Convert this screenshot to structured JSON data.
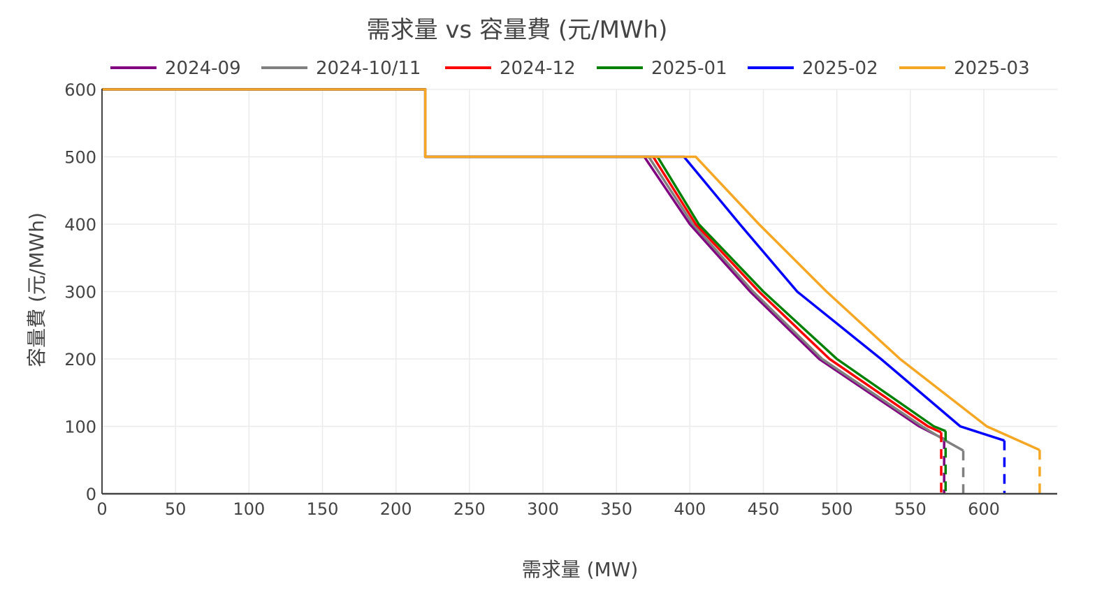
{
  "chart_data": {
    "type": "line",
    "title": "需求量 vs 容量費 (元/MWh)",
    "xlabel": "需求量 (MW)",
    "ylabel": "容量費 (元/MWh)",
    "xlim": [
      0,
      650
    ],
    "ylim": [
      0,
      600
    ],
    "xticks": [
      0,
      50,
      100,
      150,
      200,
      250,
      300,
      350,
      400,
      450,
      500,
      550,
      600
    ],
    "yticks": [
      0,
      100,
      200,
      300,
      400,
      500,
      600
    ],
    "grid": true,
    "legend": "top",
    "series": [
      {
        "name": "2024-09",
        "color": "#800080",
        "points": [
          [
            0,
            600
          ],
          [
            220,
            600
          ],
          [
            220,
            500
          ],
          [
            369,
            500
          ],
          [
            400,
            400
          ],
          [
            441,
            300
          ],
          [
            488,
            200
          ],
          [
            556,
            100
          ],
          [
            573,
            81
          ]
        ],
        "dashed_to_zero_at": 573
      },
      {
        "name": "2024-10/11",
        "color": "#808080",
        "points": [
          [
            0,
            600
          ],
          [
            220,
            600
          ],
          [
            220,
            500
          ],
          [
            372,
            500
          ],
          [
            402,
            400
          ],
          [
            443,
            300
          ],
          [
            490,
            200
          ],
          [
            558,
            100
          ],
          [
            573,
            80
          ],
          [
            586,
            64
          ]
        ],
        "dashed_to_zero_at": 586
      },
      {
        "name": "2024-12",
        "color": "#ff0000",
        "points": [
          [
            0,
            600
          ],
          [
            220,
            600
          ],
          [
            220,
            500
          ],
          [
            375,
            500
          ],
          [
            404,
            400
          ],
          [
            447,
            300
          ],
          [
            495,
            200
          ],
          [
            562,
            100
          ],
          [
            571,
            91
          ]
        ],
        "dashed_to_zero_at": 571
      },
      {
        "name": "2025-01",
        "color": "#008000",
        "points": [
          [
            0,
            600
          ],
          [
            220,
            600
          ],
          [
            220,
            500
          ],
          [
            378,
            500
          ],
          [
            406,
            400
          ],
          [
            450,
            300
          ],
          [
            500,
            200
          ],
          [
            566,
            100
          ],
          [
            574,
            93
          ]
        ],
        "dashed_to_zero_at": 574
      },
      {
        "name": "2025-02",
        "color": "#0000ff",
        "points": [
          [
            0,
            600
          ],
          [
            220,
            600
          ],
          [
            220,
            500
          ],
          [
            396,
            500
          ],
          [
            434,
            400
          ],
          [
            473,
            300
          ],
          [
            530,
            200
          ],
          [
            584,
            100
          ],
          [
            614,
            79
          ]
        ],
        "dashed_to_zero_at": 614
      },
      {
        "name": "2025-03",
        "color": "#f5a623",
        "points": [
          [
            0,
            600
          ],
          [
            220,
            600
          ],
          [
            220,
            500
          ],
          [
            404,
            500
          ],
          [
            447,
            400
          ],
          [
            493,
            300
          ],
          [
            543,
            200
          ],
          [
            602,
            100
          ],
          [
            638,
            65
          ]
        ],
        "dashed_to_zero_at": 638
      }
    ]
  }
}
